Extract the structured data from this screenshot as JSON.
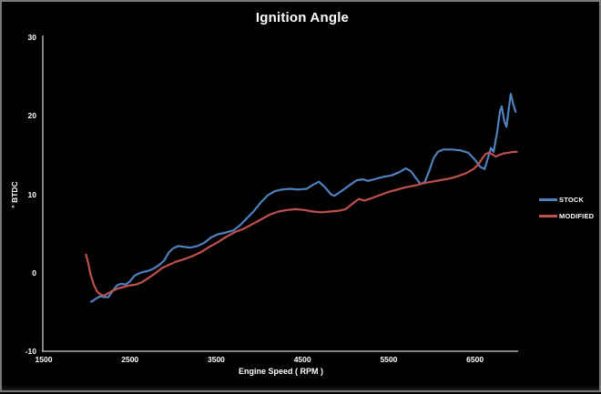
{
  "window": {
    "background": "#010101",
    "border_color": "#7a7a7a",
    "text_color": "#ffffff"
  },
  "chart_data": {
    "type": "line",
    "title": "Ignition Angle",
    "xlabel": "Engine Speed ( RPM )",
    "ylabel": "° BTDC",
    "xlim": [
      1500,
      7000
    ],
    "ylim": [
      -10,
      30
    ],
    "x_ticks": [
      1500,
      2500,
      3500,
      4500,
      5500,
      6500
    ],
    "y_ticks": [
      30,
      20,
      10,
      0,
      -10
    ],
    "grid": false,
    "legend_position": "right",
    "axis_color": "#ffffff",
    "series": [
      {
        "name": "STOCK",
        "color": "#4F81BD",
        "points": [
          [
            2050,
            -3.7
          ],
          [
            2080,
            -3.5
          ],
          [
            2120,
            -3.2
          ],
          [
            2160,
            -3.0
          ],
          [
            2200,
            -3.1
          ],
          [
            2250,
            -3.1
          ],
          [
            2300,
            -2.3
          ],
          [
            2350,
            -1.6
          ],
          [
            2400,
            -1.4
          ],
          [
            2450,
            -1.5
          ],
          [
            2500,
            -1.1
          ],
          [
            2550,
            -0.4
          ],
          [
            2600,
            -0.1
          ],
          [
            2650,
            0.1
          ],
          [
            2700,
            0.2
          ],
          [
            2750,
            0.4
          ],
          [
            2800,
            0.7
          ],
          [
            2850,
            1.1
          ],
          [
            2900,
            1.6
          ],
          [
            2950,
            2.6
          ],
          [
            3000,
            3.1
          ],
          [
            3060,
            3.4
          ],
          [
            3130,
            3.3
          ],
          [
            3200,
            3.2
          ],
          [
            3280,
            3.4
          ],
          [
            3360,
            3.8
          ],
          [
            3440,
            4.5
          ],
          [
            3520,
            4.9
          ],
          [
            3600,
            5.1
          ],
          [
            3700,
            5.4
          ],
          [
            3780,
            6.1
          ],
          [
            3860,
            7.0
          ],
          [
            3940,
            7.9
          ],
          [
            4020,
            9.0
          ],
          [
            4100,
            9.9
          ],
          [
            4180,
            10.4
          ],
          [
            4260,
            10.6
          ],
          [
            4350,
            10.7
          ],
          [
            4450,
            10.6
          ],
          [
            4550,
            10.7
          ],
          [
            4620,
            11.2
          ],
          [
            4690,
            11.6
          ],
          [
            4760,
            10.9
          ],
          [
            4830,
            10.0
          ],
          [
            4870,
            9.8
          ],
          [
            4950,
            10.4
          ],
          [
            5050,
            11.2
          ],
          [
            5130,
            11.8
          ],
          [
            5200,
            11.9
          ],
          [
            5260,
            11.7
          ],
          [
            5330,
            11.9
          ],
          [
            5430,
            12.2
          ],
          [
            5530,
            12.4
          ],
          [
            5620,
            12.8
          ],
          [
            5700,
            13.3
          ],
          [
            5760,
            12.9
          ],
          [
            5820,
            12.0
          ],
          [
            5870,
            11.3
          ],
          [
            5920,
            11.6
          ],
          [
            5970,
            13.0
          ],
          [
            6020,
            14.6
          ],
          [
            6070,
            15.4
          ],
          [
            6130,
            15.7
          ],
          [
            6230,
            15.7
          ],
          [
            6330,
            15.6
          ],
          [
            6420,
            15.3
          ],
          [
            6500,
            14.4
          ],
          [
            6560,
            13.5
          ],
          [
            6610,
            13.2
          ],
          [
            6650,
            14.6
          ],
          [
            6685,
            15.9
          ],
          [
            6715,
            15.4
          ],
          [
            6755,
            17.8
          ],
          [
            6790,
            20.6
          ],
          [
            6810,
            21.2
          ],
          [
            6840,
            19.3
          ],
          [
            6865,
            18.6
          ],
          [
            6895,
            21.2
          ],
          [
            6915,
            22.8
          ],
          [
            6940,
            21.6
          ],
          [
            6970,
            20.5
          ]
        ]
      },
      {
        "name": "MODIFIED",
        "color": "#C0504D",
        "points": [
          [
            1990,
            2.3
          ],
          [
            2015,
            1.3
          ],
          [
            2045,
            -0.3
          ],
          [
            2080,
            -1.5
          ],
          [
            2120,
            -2.4
          ],
          [
            2160,
            -2.8
          ],
          [
            2200,
            -2.9
          ],
          [
            2250,
            -2.6
          ],
          [
            2300,
            -2.3
          ],
          [
            2360,
            -2.0
          ],
          [
            2430,
            -1.8
          ],
          [
            2500,
            -1.6
          ],
          [
            2570,
            -1.5
          ],
          [
            2640,
            -1.2
          ],
          [
            2710,
            -0.7
          ],
          [
            2790,
            -0.1
          ],
          [
            2870,
            0.6
          ],
          [
            2950,
            1.0
          ],
          [
            3030,
            1.4
          ],
          [
            3120,
            1.7
          ],
          [
            3220,
            2.1
          ],
          [
            3320,
            2.6
          ],
          [
            3420,
            3.3
          ],
          [
            3520,
            3.9
          ],
          [
            3620,
            4.6
          ],
          [
            3720,
            5.2
          ],
          [
            3820,
            5.6
          ],
          [
            3920,
            6.2
          ],
          [
            4020,
            6.8
          ],
          [
            4120,
            7.4
          ],
          [
            4220,
            7.8
          ],
          [
            4320,
            8.0
          ],
          [
            4420,
            8.1
          ],
          [
            4520,
            8.0
          ],
          [
            4620,
            7.8
          ],
          [
            4720,
            7.7
          ],
          [
            4820,
            7.8
          ],
          [
            4920,
            7.9
          ],
          [
            5000,
            8.1
          ],
          [
            5080,
            8.8
          ],
          [
            5150,
            9.4
          ],
          [
            5220,
            9.2
          ],
          [
            5300,
            9.5
          ],
          [
            5400,
            9.9
          ],
          [
            5500,
            10.3
          ],
          [
            5600,
            10.6
          ],
          [
            5700,
            10.9
          ],
          [
            5800,
            11.1
          ],
          [
            5900,
            11.4
          ],
          [
            6000,
            11.6
          ],
          [
            6100,
            11.8
          ],
          [
            6200,
            12.0
          ],
          [
            6300,
            12.3
          ],
          [
            6400,
            12.7
          ],
          [
            6480,
            13.2
          ],
          [
            6540,
            13.8
          ],
          [
            6580,
            14.5
          ],
          [
            6620,
            15.1
          ],
          [
            6660,
            15.3
          ],
          [
            6700,
            15.1
          ],
          [
            6740,
            14.8
          ],
          [
            6780,
            15.0
          ],
          [
            6830,
            15.2
          ],
          [
            6890,
            15.3
          ],
          [
            6940,
            15.4
          ],
          [
            6985,
            15.4
          ]
        ]
      }
    ]
  }
}
